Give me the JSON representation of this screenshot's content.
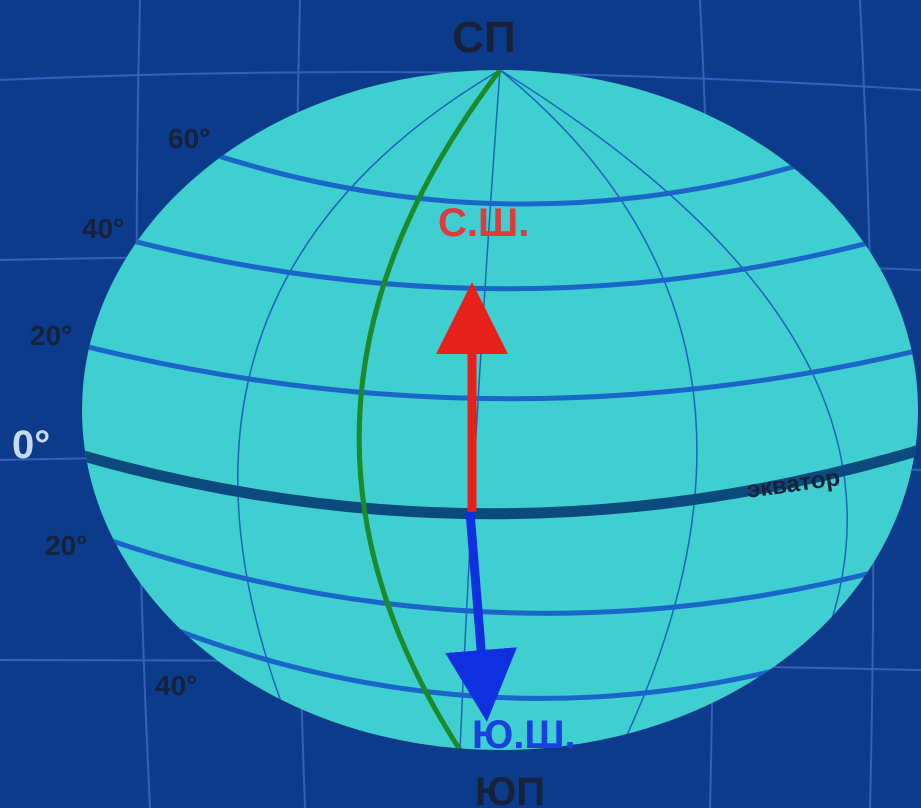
{
  "poles": {
    "north": "СП",
    "south": "ЮП"
  },
  "latitude_labels": [
    "60°",
    "40°",
    "20°",
    "0°",
    "20°",
    "40°"
  ],
  "hemispheres": {
    "north": "С.Ш.",
    "south": "Ю.Ш."
  },
  "equator": "экватор"
}
